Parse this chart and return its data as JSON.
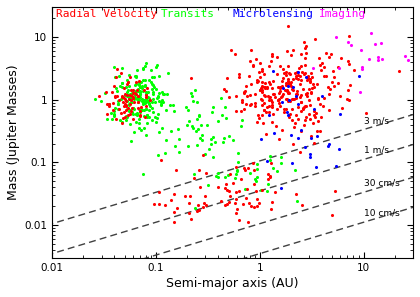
{
  "xlabel": "Semi-major axis (AU)",
  "ylabel": "Mass (Jupiter Masses)",
  "xlim": [
    0.01,
    30
  ],
  "ylim": [
    0.003,
    30
  ],
  "legend_labels": [
    "Radial Velocity",
    "Transits",
    "Microlensing",
    "Imaging"
  ],
  "legend_colors": [
    "red",
    "lime",
    "blue",
    "magenta"
  ],
  "doppler_offsets": [
    3.0,
    1.0,
    0.3,
    0.1
  ],
  "doppler_labels": [
    "3 m/s",
    "1 m/s",
    "30 cm/s",
    "10 cm/s"
  ],
  "background_color": "#ffffff",
  "point_size": 5,
  "seed": 42
}
